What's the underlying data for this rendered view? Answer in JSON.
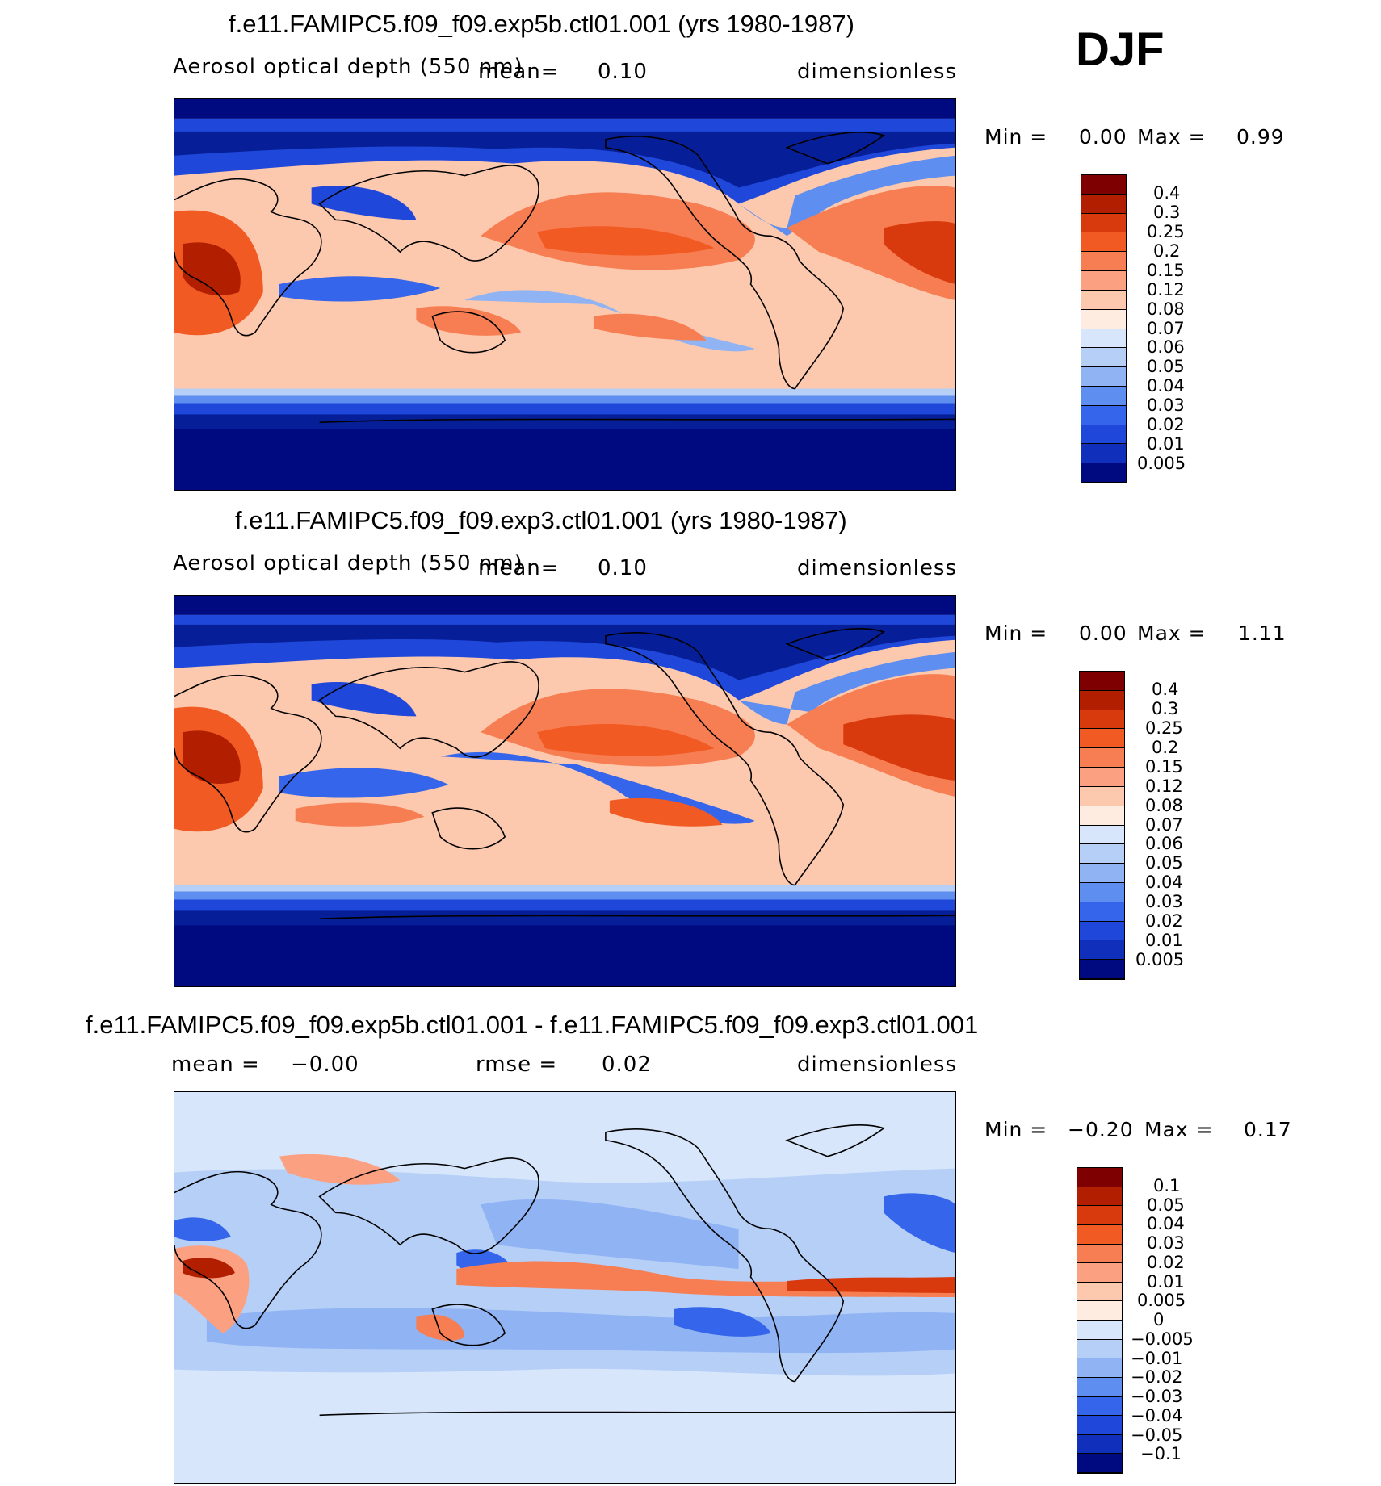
{
  "season": "DJF",
  "colors": {
    "warm": [
      "#7f0000",
      "#b11e00",
      "#d93a0d",
      "#f25a24",
      "#f77e52",
      "#fca082",
      "#fdc9ae",
      "#feece0"
    ],
    "cool": [
      "#d7e6fb",
      "#b6cff7",
      "#8fb3f3",
      "#5e8ef0",
      "#3465ea",
      "#1f47d9",
      "#1030bc",
      "#061f99",
      "#000a80"
    ]
  },
  "panels": [
    {
      "id": "top",
      "title": "f.e11.FAMIPC5.f09_f09.exp5b.ctl01.001 (yrs 1980-1987)",
      "variable": "Aerosol optical depth (550 nm)",
      "mean_label": "mean=",
      "mean_value": "0.10",
      "rmse_label": "",
      "rmse_value": "",
      "units": "dimensionless",
      "min_label": "Min =",
      "min_value": "0.00",
      "max_label": "Max =",
      "max_value": "0.99",
      "levels": [
        "0.4",
        "0.3",
        "0.25",
        "0.2",
        "0.15",
        "0.12",
        "0.08",
        "0.07",
        "0.06",
        "0.05",
        "0.04",
        "0.03",
        "0.02",
        "0.01",
        "0.005"
      ]
    },
    {
      "id": "middle",
      "title": "f.e11.FAMIPC5.f09_f09.exp3.ctl01.001 (yrs 1980-1987)",
      "variable": "Aerosol optical depth (550 nm)",
      "mean_label": "mean=",
      "mean_value": "0.10",
      "rmse_label": "",
      "rmse_value": "",
      "units": "dimensionless",
      "min_label": "Min =",
      "min_value": "0.00",
      "max_label": "Max =",
      "max_value": "1.11",
      "levels": [
        "0.4",
        "0.3",
        "0.25",
        "0.2",
        "0.15",
        "0.12",
        "0.08",
        "0.07",
        "0.06",
        "0.05",
        "0.04",
        "0.03",
        "0.02",
        "0.01",
        "0.005"
      ]
    },
    {
      "id": "bottom",
      "title": "f.e11.FAMIPC5.f09_f09.exp5b.ctl01.001 - f.e11.FAMIPC5.f09_f09.exp3.ctl01.001",
      "variable": "",
      "mean_label": "mean =",
      "mean_value": "−0.00",
      "rmse_label": "rmse =",
      "rmse_value": "0.02",
      "units": "dimensionless",
      "min_label": "Min =",
      "min_value": "−0.20",
      "max_label": "Max =",
      "max_value": "0.17",
      "levels": [
        "0.1",
        "0.05",
        "0.04",
        "0.03",
        "0.02",
        "0.01",
        "0.005",
        "0",
        "−0.005",
        "−0.01",
        "−0.02",
        "−0.03",
        "−0.04",
        "−0.05",
        "−0.1"
      ]
    }
  ]
}
